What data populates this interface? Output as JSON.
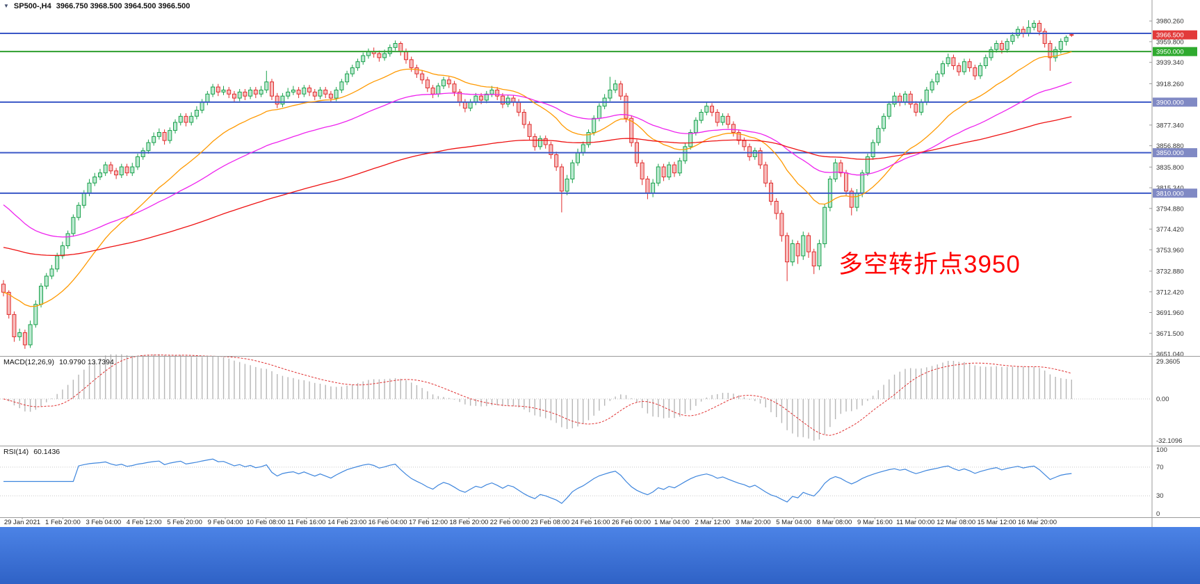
{
  "title": {
    "symbol": "SP500-,H4",
    "quotes": "3966.750 3968.500 3964.500 3966.500"
  },
  "ui": {
    "expand_icon": "▼"
  },
  "annotation": {
    "text": "多空转折点3950",
    "color": "#ff0000"
  },
  "indicators": {
    "macd": {
      "label": "MACD(12,26,9)",
      "values": "10.9790 13.7394"
    },
    "rsi": {
      "label": "RSI(14)",
      "value": "60.1436"
    }
  },
  "chart_data": {
    "type": "candlestick",
    "symbol": "SP500-",
    "timeframe": "H4",
    "price_range_top": 4001,
    "price_range_bottom": 3649,
    "x_labels": [
      "29 Jan 2021",
      "1 Feb 20:00",
      "3 Feb 04:00",
      "4 Feb 12:00",
      "5 Feb 20:00",
      "9 Feb 04:00",
      "10 Feb 08:00",
      "11 Feb 16:00",
      "14 Feb 23:00",
      "16 Feb 04:00",
      "17 Feb 12:00",
      "18 Feb 20:00",
      "22 Feb 00:00",
      "23 Feb 08:00",
      "24 Feb 16:00",
      "26 Feb 00:00",
      "1 Mar 04:00",
      "2 Mar 12:00",
      "3 Mar 20:00",
      "5 Mar 04:00",
      "8 Mar 08:00",
      "9 Mar 16:00",
      "11 Mar 00:00",
      "12 Mar 08:00",
      "15 Mar 12:00",
      "16 Mar 20:00"
    ],
    "price_scale": {
      "ticks": [
        "3980.260",
        "3959.800",
        "3939.340",
        "3918.260",
        "3877.340",
        "3856.880",
        "3835.800",
        "3815.340",
        "3794.880",
        "3774.420",
        "3753.960",
        "3732.880",
        "3712.420",
        "3691.960",
        "3671.500",
        "3651.040"
      ],
      "tags": [
        {
          "value": "3966.500",
          "price": 3966.5,
          "bg": "#e23b3b",
          "type": "current-price"
        },
        {
          "value": "3950.000",
          "price": 3950,
          "bg": "#2faa2f",
          "type": "green-line"
        },
        {
          "value": "3900.000",
          "price": 3900,
          "bg": "#8089c4",
          "type": "blue-line"
        },
        {
          "value": "3850.000",
          "price": 3850,
          "bg": "#8089c4",
          "type": "blue-line"
        },
        {
          "value": "3810.000",
          "price": 3810,
          "bg": "#8089c4",
          "type": "blue-line"
        }
      ]
    },
    "hlines": [
      {
        "price": 3968,
        "color": "#3a57c6",
        "width": 2
      },
      {
        "price": 3950,
        "color": "#2e9e2e",
        "width": 2
      },
      {
        "price": 3900,
        "color": "#3a57c6",
        "width": 2
      },
      {
        "price": 3850,
        "color": "#3a57c6",
        "width": 2
      },
      {
        "price": 3810,
        "color": "#3a57c6",
        "width": 2
      }
    ],
    "moving_averages": [
      {
        "name": "fast",
        "period": 22,
        "seed": 3712,
        "color": "#ff9900"
      },
      {
        "name": "medium",
        "period": 50,
        "seed": 3802,
        "color": "#ee22ee"
      },
      {
        "name": "slow",
        "period": 130,
        "seed": 3757,
        "color": "#ee1111"
      }
    ],
    "macd": {
      "fast": 12,
      "slow": 26,
      "signal": 9,
      "current_macd": 10.979,
      "current_signal": 13.7394,
      "scale_max": 29.3605,
      "scale_min": -32.1096,
      "scale_labels": [
        "29.3605",
        "0.00",
        "-32.1096"
      ]
    },
    "rsi": {
      "period": 14,
      "current": 60.1436,
      "levels": [
        70,
        30
      ],
      "scale_labels": [
        "100",
        "70",
        "30",
        "0"
      ]
    },
    "colors": {
      "up": "#18a04a",
      "up_fill": "#bce9d1",
      "down": "#e02c2c",
      "down_fill": "#f7bdbd",
      "macd_hist": "#b6b6b6",
      "macd_signal": "#e03030",
      "rsi_line": "#3d85dd",
      "hline_blue": "#3a57c6",
      "hline_green": "#2e9e2e",
      "taskbar": "#3a72d8"
    },
    "ohlc": [
      [
        3720,
        3724,
        3708,
        3712
      ],
      [
        3712,
        3714,
        3686,
        3690
      ],
      [
        3690,
        3693,
        3663,
        3668
      ],
      [
        3668,
        3676,
        3664,
        3672
      ],
      [
        3672,
        3675,
        3656,
        3660
      ],
      [
        3660,
        3684,
        3657,
        3680
      ],
      [
        3680,
        3704,
        3677,
        3700
      ],
      [
        3700,
        3721,
        3697,
        3718
      ],
      [
        3718,
        3731,
        3715,
        3728
      ],
      [
        3728,
        3739,
        3725,
        3735
      ],
      [
        3735,
        3751,
        3732,
        3748
      ],
      [
        3748,
        3762,
        3745,
        3758
      ],
      [
        3758,
        3773,
        3755,
        3770
      ],
      [
        3770,
        3789,
        3767,
        3786
      ],
      [
        3786,
        3801,
        3783,
        3798
      ],
      [
        3798,
        3813,
        3795,
        3810
      ],
      [
        3810,
        3824,
        3807,
        3820
      ],
      [
        3820,
        3830,
        3817,
        3826
      ],
      [
        3826,
        3834,
        3823,
        3830
      ],
      [
        3830,
        3841,
        3827,
        3838
      ],
      [
        3838,
        3841,
        3829,
        3832
      ],
      [
        3832,
        3835,
        3824,
        3828
      ],
      [
        3828,
        3839,
        3825,
        3836
      ],
      [
        3836,
        3839,
        3827,
        3830
      ],
      [
        3830,
        3840,
        3827,
        3836
      ],
      [
        3836,
        3849,
        3833,
        3846
      ],
      [
        3846,
        3855,
        3843,
        3852
      ],
      [
        3852,
        3863,
        3849,
        3860
      ],
      [
        3860,
        3870,
        3857,
        3866
      ],
      [
        3866,
        3874,
        3863,
        3870
      ],
      [
        3870,
        3873,
        3858,
        3862
      ],
      [
        3862,
        3875,
        3859,
        3872
      ],
      [
        3872,
        3883,
        3869,
        3880
      ],
      [
        3880,
        3889,
        3877,
        3886
      ],
      [
        3886,
        3889,
        3876,
        3880
      ],
      [
        3880,
        3890,
        3877,
        3886
      ],
      [
        3886,
        3896,
        3883,
        3892
      ],
      [
        3892,
        3903,
        3889,
        3900
      ],
      [
        3900,
        3911,
        3897,
        3908
      ],
      [
        3908,
        3918,
        3905,
        3915
      ],
      [
        3915,
        3918,
        3906,
        3910
      ],
      [
        3910,
        3916,
        3907,
        3912
      ],
      [
        3912,
        3915,
        3904,
        3908
      ],
      [
        3908,
        3911,
        3900,
        3904
      ],
      [
        3904,
        3913,
        3901,
        3910
      ],
      [
        3910,
        3913,
        3902,
        3906
      ],
      [
        3906,
        3915,
        3903,
        3912
      ],
      [
        3912,
        3915,
        3904,
        3908
      ],
      [
        3908,
        3916,
        3905,
        3912
      ],
      [
        3912,
        3931,
        3909,
        3920
      ],
      [
        3920,
        3923,
        3902,
        3906
      ],
      [
        3906,
        3909,
        3894,
        3898
      ],
      [
        3898,
        3909,
        3895,
        3906
      ],
      [
        3906,
        3914,
        3903,
        3910
      ],
      [
        3910,
        3916,
        3907,
        3912
      ],
      [
        3912,
        3915,
        3904,
        3908
      ],
      [
        3908,
        3917,
        3905,
        3914
      ],
      [
        3914,
        3917,
        3906,
        3910
      ],
      [
        3910,
        3913,
        3902,
        3906
      ],
      [
        3906,
        3915,
        3903,
        3912
      ],
      [
        3912,
        3915,
        3904,
        3908
      ],
      [
        3908,
        3911,
        3900,
        3904
      ],
      [
        3904,
        3915,
        3901,
        3912
      ],
      [
        3912,
        3923,
        3909,
        3920
      ],
      [
        3920,
        3931,
        3917,
        3928
      ],
      [
        3928,
        3937,
        3925,
        3934
      ],
      [
        3934,
        3943,
        3931,
        3940
      ],
      [
        3940,
        3949,
        3937,
        3946
      ],
      [
        3946,
        3953,
        3943,
        3950
      ],
      [
        3950,
        3954,
        3944,
        3948
      ],
      [
        3948,
        3951,
        3940,
        3944
      ],
      [
        3944,
        3952,
        3941,
        3948
      ],
      [
        3948,
        3957,
        3945,
        3954
      ],
      [
        3954,
        3961,
        3951,
        3958
      ],
      [
        3958,
        3960,
        3946,
        3950
      ],
      [
        3950,
        3953,
        3938,
        3942
      ],
      [
        3942,
        3945,
        3930,
        3934
      ],
      [
        3934,
        3937,
        3924,
        3928
      ],
      [
        3928,
        3931,
        3918,
        3922
      ],
      [
        3922,
        3925,
        3910,
        3914
      ],
      [
        3914,
        3917,
        3904,
        3908
      ],
      [
        3908,
        3919,
        3905,
        3916
      ],
      [
        3916,
        3925,
        3913,
        3922
      ],
      [
        3922,
        3925,
        3914,
        3918
      ],
      [
        3918,
        3921,
        3906,
        3910
      ],
      [
        3910,
        3913,
        3896,
        3900
      ],
      [
        3900,
        3903,
        3890,
        3894
      ],
      [
        3894,
        3903,
        3891,
        3900
      ],
      [
        3900,
        3909,
        3897,
        3906
      ],
      [
        3906,
        3909,
        3898,
        3902
      ],
      [
        3902,
        3911,
        3899,
        3908
      ],
      [
        3908,
        3916,
        3905,
        3912
      ],
      [
        3912,
        3915,
        3902,
        3906
      ],
      [
        3906,
        3909,
        3894,
        3898
      ],
      [
        3898,
        3907,
        3895,
        3904
      ],
      [
        3904,
        3907,
        3896,
        3900
      ],
      [
        3900,
        3903,
        3886,
        3890
      ],
      [
        3890,
        3893,
        3874,
        3878
      ],
      [
        3878,
        3881,
        3862,
        3866
      ],
      [
        3866,
        3869,
        3852,
        3856
      ],
      [
        3856,
        3867,
        3853,
        3864
      ],
      [
        3864,
        3867,
        3854,
        3858
      ],
      [
        3858,
        3861,
        3844,
        3848
      ],
      [
        3848,
        3851,
        3832,
        3836
      ],
      [
        3836,
        3839,
        3791,
        3812
      ],
      [
        3812,
        3828,
        3808,
        3824
      ],
      [
        3824,
        3843,
        3820,
        3840
      ],
      [
        3840,
        3854,
        3837,
        3850
      ],
      [
        3850,
        3861,
        3847,
        3858
      ],
      [
        3858,
        3873,
        3855,
        3870
      ],
      [
        3870,
        3887,
        3867,
        3884
      ],
      [
        3884,
        3899,
        3881,
        3896
      ],
      [
        3896,
        3908,
        3893,
        3904
      ],
      [
        3904,
        3925,
        3901,
        3912
      ],
      [
        3912,
        3922,
        3909,
        3918
      ],
      [
        3918,
        3921,
        3902,
        3906
      ],
      [
        3906,
        3909,
        3880,
        3884
      ],
      [
        3884,
        3887,
        3856,
        3860
      ],
      [
        3860,
        3863,
        3836,
        3840
      ],
      [
        3840,
        3843,
        3818,
        3824
      ],
      [
        3824,
        3827,
        3804,
        3810
      ],
      [
        3810,
        3824,
        3806,
        3820
      ],
      [
        3820,
        3839,
        3817,
        3836
      ],
      [
        3836,
        3839,
        3822,
        3826
      ],
      [
        3826,
        3841,
        3823,
        3838
      ],
      [
        3838,
        3841,
        3826,
        3830
      ],
      [
        3830,
        3845,
        3827,
        3842
      ],
      [
        3842,
        3859,
        3839,
        3856
      ],
      [
        3856,
        3873,
        3853,
        3870
      ],
      [
        3870,
        3885,
        3867,
        3882
      ],
      [
        3882,
        3893,
        3879,
        3890
      ],
      [
        3890,
        3900,
        3887,
        3896
      ],
      [
        3896,
        3899,
        3886,
        3890
      ],
      [
        3890,
        3893,
        3876,
        3880
      ],
      [
        3880,
        3889,
        3877,
        3886
      ],
      [
        3886,
        3889,
        3874,
        3878
      ],
      [
        3878,
        3881,
        3866,
        3870
      ],
      [
        3870,
        3873,
        3858,
        3862
      ],
      [
        3862,
        3865,
        3852,
        3856
      ],
      [
        3856,
        3859,
        3842,
        3846
      ],
      [
        3846,
        3855,
        3843,
        3852
      ],
      [
        3852,
        3855,
        3834,
        3838
      ],
      [
        3838,
        3841,
        3816,
        3820
      ],
      [
        3820,
        3823,
        3798,
        3802
      ],
      [
        3802,
        3805,
        3784,
        3790
      ],
      [
        3790,
        3793,
        3762,
        3768
      ],
      [
        3768,
        3771,
        3723,
        3742
      ],
      [
        3742,
        3764,
        3738,
        3760
      ],
      [
        3760,
        3763,
        3740,
        3748
      ],
      [
        3748,
        3772,
        3744,
        3768
      ],
      [
        3768,
        3771,
        3746,
        3752
      ],
      [
        3752,
        3755,
        3730,
        3738
      ],
      [
        3738,
        3764,
        3734,
        3760
      ],
      [
        3760,
        3799,
        3756,
        3796
      ],
      [
        3796,
        3827,
        3792,
        3824
      ],
      [
        3824,
        3844,
        3821,
        3840
      ],
      [
        3840,
        3843,
        3826,
        3830
      ],
      [
        3830,
        3833,
        3808,
        3812
      ],
      [
        3812,
        3815,
        3788,
        3796
      ],
      [
        3796,
        3814,
        3792,
        3810
      ],
      [
        3810,
        3833,
        3806,
        3830
      ],
      [
        3830,
        3849,
        3827,
        3846
      ],
      [
        3846,
        3863,
        3843,
        3860
      ],
      [
        3860,
        3877,
        3857,
        3874
      ],
      [
        3874,
        3889,
        3871,
        3886
      ],
      [
        3886,
        3901,
        3883,
        3898
      ],
      [
        3898,
        3910,
        3895,
        3906
      ],
      [
        3906,
        3909,
        3896,
        3900
      ],
      [
        3900,
        3911,
        3897,
        3908
      ],
      [
        3908,
        3911,
        3894,
        3898
      ],
      [
        3898,
        3901,
        3886,
        3890
      ],
      [
        3890,
        3903,
        3887,
        3900
      ],
      [
        3900,
        3915,
        3897,
        3912
      ],
      [
        3912,
        3923,
        3909,
        3920
      ],
      [
        3920,
        3931,
        3917,
        3928
      ],
      [
        3928,
        3941,
        3925,
        3938
      ],
      [
        3938,
        3948,
        3935,
        3944
      ],
      [
        3944,
        3947,
        3932,
        3936
      ],
      [
        3936,
        3939,
        3926,
        3930
      ],
      [
        3930,
        3943,
        3927,
        3940
      ],
      [
        3940,
        3943,
        3930,
        3934
      ],
      [
        3934,
        3937,
        3922,
        3926
      ],
      [
        3926,
        3939,
        3923,
        3936
      ],
      [
        3936,
        3947,
        3933,
        3944
      ],
      [
        3944,
        3955,
        3941,
        3952
      ],
      [
        3952,
        3961,
        3949,
        3958
      ],
      [
        3958,
        3961,
        3948,
        3952
      ],
      [
        3952,
        3963,
        3949,
        3960
      ],
      [
        3960,
        3969,
        3957,
        3966
      ],
      [
        3966,
        3975,
        3963,
        3972
      ],
      [
        3972,
        3975,
        3964,
        3968
      ],
      [
        3968,
        3981,
        3965,
        3974
      ],
      [
        3974,
        3981,
        3971,
        3978
      ],
      [
        3978,
        3981,
        3966,
        3970
      ],
      [
        3970,
        3973,
        3954,
        3958
      ],
      [
        3958,
        3961,
        3931,
        3944
      ],
      [
        3944,
        3955,
        3940,
        3952
      ],
      [
        3952,
        3963,
        3948,
        3960
      ],
      [
        3960,
        3966,
        3956,
        3964
      ],
      [
        3966.75,
        3968.5,
        3964.5,
        3966.5
      ]
    ]
  }
}
